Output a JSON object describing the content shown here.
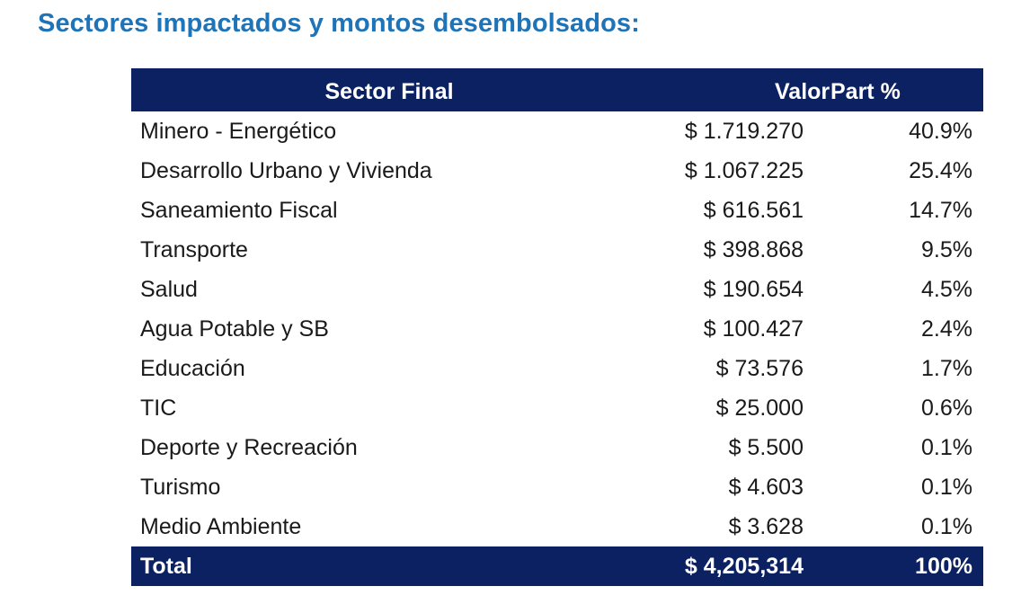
{
  "title": "Sectores impactados y montos desembolsados:",
  "colors": {
    "title": "#1f73b7",
    "header_bg": "#0b2162",
    "header_text": "#ffffff"
  },
  "table": {
    "headers": {
      "sector": "Sector Final",
      "valor": "Valor",
      "part": "Part %"
    },
    "rows": [
      {
        "sector": "Minero - Energético",
        "valor": "$ 1.719.270",
        "part": "40.9%"
      },
      {
        "sector": "Desarrollo Urbano y Vivienda",
        "valor": "$ 1.067.225",
        "part": "25.4%"
      },
      {
        "sector": "Saneamiento Fiscal",
        "valor": "$ 616.561",
        "part": "14.7%"
      },
      {
        "sector": "Transporte",
        "valor": "$ 398.868",
        "part": "9.5%"
      },
      {
        "sector": "Salud",
        "valor": "$ 190.654",
        "part": "4.5%"
      },
      {
        "sector": "Agua Potable y SB",
        "valor": "$ 100.427",
        "part": "2.4%"
      },
      {
        "sector": "Educación",
        "valor": "$ 73.576",
        "part": "1.7%"
      },
      {
        "sector": "TIC",
        "valor": "$ 25.000",
        "part": "0.6%"
      },
      {
        "sector": "Deporte y Recreación",
        "valor": "$ 5.500",
        "part": "0.1%"
      },
      {
        "sector": "Turismo",
        "valor": "$ 4.603",
        "part": "0.1%"
      },
      {
        "sector": "Medio Ambiente",
        "valor": "$ 3.628",
        "part": "0.1%"
      }
    ],
    "total": {
      "label": "Total",
      "valor": "$ 4,205,314",
      "part": "100%"
    }
  }
}
